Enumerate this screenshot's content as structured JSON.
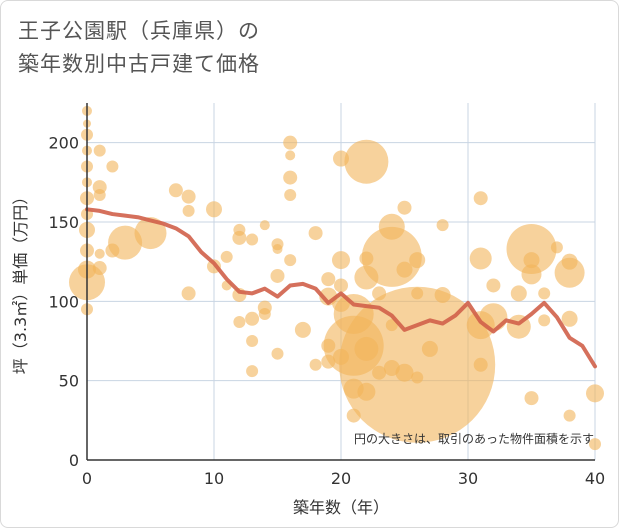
{
  "title": {
    "line1": "王子公園駅（兵庫県）の",
    "line2": "築年数別中古戸建て価格"
  },
  "chart_data": {
    "type": "scatter",
    "xlabel": "築年数（年）",
    "ylabel": "坪（3.3㎡）単価（万円）",
    "xlim": [
      0,
      40
    ],
    "ylim": [
      0,
      225
    ],
    "xticks": [
      0,
      10,
      20,
      30,
      40
    ],
    "yticks": [
      0,
      50,
      100,
      150,
      200
    ],
    "grid": true,
    "annotation": "円の大きさは、取引のあった物件面積を示す",
    "colors": {
      "bubble": "#f2b45a",
      "line": "#d0604a",
      "grid": "#c8d4e3",
      "axis": "#333333"
    },
    "bubbles": [
      {
        "x": 0,
        "y": 220,
        "s": 5
      },
      {
        "x": 0,
        "y": 212,
        "s": 4
      },
      {
        "x": 0,
        "y": 205,
        "s": 6
      },
      {
        "x": 0,
        "y": 195,
        "s": 5
      },
      {
        "x": 0,
        "y": 185,
        "s": 6
      },
      {
        "x": 0,
        "y": 175,
        "s": 5
      },
      {
        "x": 0,
        "y": 165,
        "s": 7
      },
      {
        "x": 0,
        "y": 155,
        "s": 6
      },
      {
        "x": 0,
        "y": 145,
        "s": 8
      },
      {
        "x": 0,
        "y": 132,
        "s": 7
      },
      {
        "x": 0,
        "y": 120,
        "s": 9
      },
      {
        "x": 0,
        "y": 112,
        "s": 18
      },
      {
        "x": 0,
        "y": 95,
        "s": 6
      },
      {
        "x": 1,
        "y": 195,
        "s": 6
      },
      {
        "x": 1,
        "y": 172,
        "s": 7
      },
      {
        "x": 1,
        "y": 167,
        "s": 6
      },
      {
        "x": 1,
        "y": 130,
        "s": 5
      },
      {
        "x": 1,
        "y": 121,
        "s": 7
      },
      {
        "x": 2,
        "y": 185,
        "s": 6
      },
      {
        "x": 2,
        "y": 132,
        "s": 7
      },
      {
        "x": 3,
        "y": 137,
        "s": 17
      },
      {
        "x": 5,
        "y": 143,
        "s": 16
      },
      {
        "x": 7,
        "y": 170,
        "s": 7
      },
      {
        "x": 8,
        "y": 166,
        "s": 7
      },
      {
        "x": 8,
        "y": 157,
        "s": 6
      },
      {
        "x": 8,
        "y": 105,
        "s": 7
      },
      {
        "x": 10,
        "y": 158,
        "s": 8
      },
      {
        "x": 10,
        "y": 122,
        "s": 7
      },
      {
        "x": 11,
        "y": 128,
        "s": 6
      },
      {
        "x": 11,
        "y": 110,
        "s": 5
      },
      {
        "x": 12,
        "y": 145,
        "s": 6
      },
      {
        "x": 12,
        "y": 140,
        "s": 7
      },
      {
        "x": 12,
        "y": 104,
        "s": 7
      },
      {
        "x": 12,
        "y": 87,
        "s": 6
      },
      {
        "x": 13,
        "y": 139,
        "s": 6
      },
      {
        "x": 13,
        "y": 89,
        "s": 7
      },
      {
        "x": 13,
        "y": 75,
        "s": 6
      },
      {
        "x": 13,
        "y": 56,
        "s": 6
      },
      {
        "x": 14,
        "y": 148,
        "s": 5
      },
      {
        "x": 14,
        "y": 96,
        "s": 7
      },
      {
        "x": 14,
        "y": 92,
        "s": 6
      },
      {
        "x": 15,
        "y": 136,
        "s": 6
      },
      {
        "x": 15,
        "y": 133,
        "s": 5
      },
      {
        "x": 15,
        "y": 116,
        "s": 7
      },
      {
        "x": 15,
        "y": 67,
        "s": 6
      },
      {
        "x": 16,
        "y": 200,
        "s": 7
      },
      {
        "x": 16,
        "y": 192,
        "s": 5
      },
      {
        "x": 16,
        "y": 178,
        "s": 7
      },
      {
        "x": 16,
        "y": 167,
        "s": 6
      },
      {
        "x": 16,
        "y": 126,
        "s": 6
      },
      {
        "x": 17,
        "y": 82,
        "s": 8
      },
      {
        "x": 18,
        "y": 143,
        "s": 7
      },
      {
        "x": 18,
        "y": 60,
        "s": 6
      },
      {
        "x": 19,
        "y": 114,
        "s": 7
      },
      {
        "x": 19,
        "y": 103,
        "s": 9
      },
      {
        "x": 19,
        "y": 72,
        "s": 7
      },
      {
        "x": 19,
        "y": 62,
        "s": 7
      },
      {
        "x": 20,
        "y": 190,
        "s": 8
      },
      {
        "x": 20,
        "y": 126,
        "s": 9
      },
      {
        "x": 20,
        "y": 110,
        "s": 7
      },
      {
        "x": 20,
        "y": 99,
        "s": 9
      },
      {
        "x": 20,
        "y": 65,
        "s": 8
      },
      {
        "x": 21,
        "y": 92,
        "s": 20
      },
      {
        "x": 21,
        "y": 72,
        "s": 30
      },
      {
        "x": 21,
        "y": 45,
        "s": 10
      },
      {
        "x": 21,
        "y": 28,
        "s": 7
      },
      {
        "x": 22,
        "y": 188,
        "s": 22
      },
      {
        "x": 22,
        "y": 127,
        "s": 7
      },
      {
        "x": 22,
        "y": 115,
        "s": 12
      },
      {
        "x": 22,
        "y": 70,
        "s": 12
      },
      {
        "x": 22,
        "y": 43,
        "s": 9
      },
      {
        "x": 23,
        "y": 105,
        "s": 7
      },
      {
        "x": 23,
        "y": 55,
        "s": 7
      },
      {
        "x": 24,
        "y": 147,
        "s": 13
      },
      {
        "x": 24,
        "y": 128,
        "s": 30
      },
      {
        "x": 24,
        "y": 85,
        "s": 6
      },
      {
        "x": 24,
        "y": 58,
        "s": 8
      },
      {
        "x": 25,
        "y": 159,
        "s": 7
      },
      {
        "x": 25,
        "y": 120,
        "s": 8
      },
      {
        "x": 25,
        "y": 55,
        "s": 9
      },
      {
        "x": 26,
        "y": 126,
        "s": 8
      },
      {
        "x": 26,
        "y": 105,
        "s": 6
      },
      {
        "x": 26,
        "y": 60,
        "s": 78
      },
      {
        "x": 26,
        "y": 52,
        "s": 6
      },
      {
        "x": 27,
        "y": 70,
        "s": 8
      },
      {
        "x": 28,
        "y": 148,
        "s": 6
      },
      {
        "x": 28,
        "y": 104,
        "s": 8
      },
      {
        "x": 31,
        "y": 165,
        "s": 7
      },
      {
        "x": 31,
        "y": 127,
        "s": 11
      },
      {
        "x": 31,
        "y": 85,
        "s": 14
      },
      {
        "x": 31,
        "y": 60,
        "s": 7
      },
      {
        "x": 32,
        "y": 110,
        "s": 7
      },
      {
        "x": 32,
        "y": 90,
        "s": 14
      },
      {
        "x": 34,
        "y": 105,
        "s": 8
      },
      {
        "x": 34,
        "y": 84,
        "s": 12
      },
      {
        "x": 35,
        "y": 133,
        "s": 25
      },
      {
        "x": 35,
        "y": 126,
        "s": 8
      },
      {
        "x": 35,
        "y": 117,
        "s": 10
      },
      {
        "x": 35,
        "y": 39,
        "s": 7
      },
      {
        "x": 36,
        "y": 105,
        "s": 6
      },
      {
        "x": 36,
        "y": 88,
        "s": 6
      },
      {
        "x": 37,
        "y": 134,
        "s": 6
      },
      {
        "x": 38,
        "y": 125,
        "s": 8
      },
      {
        "x": 38,
        "y": 118,
        "s": 15
      },
      {
        "x": 38,
        "y": 89,
        "s": 8
      },
      {
        "x": 38,
        "y": 28,
        "s": 6
      },
      {
        "x": 40,
        "y": 42,
        "s": 9
      },
      {
        "x": 40,
        "y": 10,
        "s": 6
      }
    ],
    "series": [
      {
        "x": [
          0,
          1,
          2,
          3,
          4,
          5,
          6,
          7,
          8,
          9,
          10,
          11,
          12,
          13,
          14,
          15,
          16,
          17,
          18,
          19,
          20,
          21,
          22,
          23,
          24,
          25,
          26,
          27,
          28,
          29,
          30,
          31,
          32,
          33,
          34,
          35,
          36,
          37,
          38,
          39,
          40
        ],
        "y": [
          158,
          157,
          155,
          154,
          153,
          151,
          149,
          146,
          141,
          131,
          124,
          114,
          106,
          105,
          108,
          103,
          110,
          111,
          108,
          99,
          105,
          98,
          97,
          96,
          91,
          82,
          85,
          88,
          86,
          91,
          99,
          87,
          81,
          88,
          86,
          92,
          99,
          90,
          77,
          72,
          59
        ]
      }
    ]
  }
}
